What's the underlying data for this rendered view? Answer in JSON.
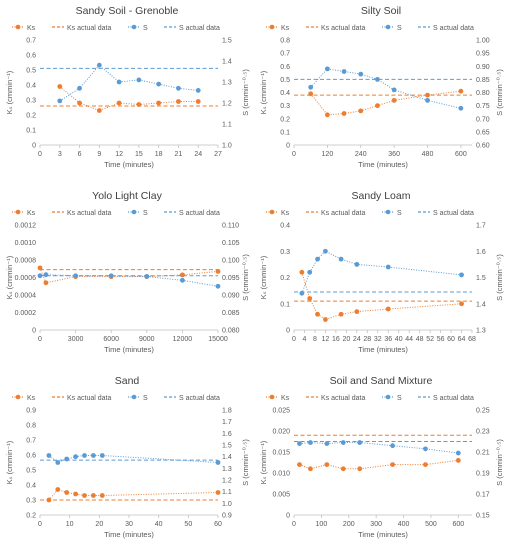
{
  "colors": {
    "ks": "#ED7D31",
    "s": "#5B9BD5",
    "axis": "#bfbfbf",
    "text": "#595959",
    "title": "#404040"
  },
  "legend_labels": [
    "Ks",
    "Ks actual data",
    "S",
    "S actual data"
  ],
  "chart_data": [
    {
      "type": "line",
      "title": "Sandy Soil - Grenoble",
      "xlabel": "Time (minutes)",
      "ylabel": "Kₛ (cmmin⁻¹)",
      "y2label": "S (cmmin⁻⁰·⁵)",
      "xlim": [
        0,
        27
      ],
      "xticks": [
        "0",
        "3",
        "6",
        "9",
        "12",
        "15",
        "18",
        "21",
        "24",
        "27"
      ],
      "ylim": [
        0,
        0.7
      ],
      "yticks": [
        "0",
        "0.1",
        "0.2",
        "0.3",
        "0.4",
        "0.5",
        "0.6",
        "0.7"
      ],
      "y2lim": [
        1.0,
        1.5
      ],
      "y2ticks": [
        "1.0",
        "1.1",
        "1.2",
        "1.3",
        "1.4",
        "1.5"
      ],
      "series": [
        {
          "name": "Ks",
          "axis": "left",
          "x": [
            3,
            6,
            9,
            12,
            15,
            18,
            21,
            24
          ],
          "y": [
            0.39,
            0.28,
            0.23,
            0.28,
            0.27,
            0.28,
            0.29,
            0.29
          ]
        },
        {
          "name": "S",
          "axis": "right",
          "x": [
            3,
            6,
            9,
            12,
            15,
            18,
            21,
            24
          ],
          "y": [
            1.21,
            1.27,
            1.38,
            1.3,
            1.31,
            1.29,
            1.27,
            1.26
          ]
        }
      ],
      "ks_actual": 0.26,
      "s_actual": 1.365
    },
    {
      "type": "line",
      "title": "Silty Soil",
      "xlabel": "Time (minutes)",
      "ylabel": "Kₛ (cmmin⁻¹)",
      "y2label": "S (cmmin⁻⁰·⁵)",
      "xlim": [
        0,
        640
      ],
      "xticks": [
        "0",
        "120",
        "240",
        "360",
        "480",
        "600"
      ],
      "xtickvals": [
        0,
        120,
        240,
        360,
        480,
        600
      ],
      "ylim": [
        0,
        0.8
      ],
      "yticks": [
        "0",
        "0.1",
        "0.2",
        "0.3",
        "0.4",
        "0.5",
        "0.6",
        "0.7",
        "0.8"
      ],
      "y2lim": [
        0.6,
        1.0
      ],
      "y2ticks": [
        "0.60",
        "0.65",
        "0.70",
        "0.75",
        "0.80",
        "0.85",
        "0.90",
        "0.95",
        "1.00"
      ],
      "series": [
        {
          "name": "Ks",
          "axis": "left",
          "x": [
            60,
            120,
            180,
            240,
            300,
            360,
            480,
            600
          ],
          "y": [
            0.39,
            0.23,
            0.24,
            0.26,
            0.3,
            0.34,
            0.38,
            0.41
          ]
        },
        {
          "name": "S",
          "axis": "right",
          "x": [
            60,
            120,
            180,
            240,
            300,
            360,
            480,
            600
          ],
          "y": [
            0.82,
            0.89,
            0.88,
            0.87,
            0.85,
            0.81,
            0.77,
            0.74
          ]
        },
        {
          "name": "Ks actual data",
          "axis": "left",
          "x": [],
          "y": []
        }
      ],
      "ks_actual": 0.38,
      "s_actual": 0.85
    },
    {
      "type": "line",
      "title": "Yolo Light Clay",
      "xlabel": "Time (minutes)",
      "ylabel": "Kₛ (cmmin⁻¹)",
      "y2label": "S (cmmin⁻⁰·⁵)",
      "xlim": [
        0,
        15000
      ],
      "xticks": [
        "0",
        "3000",
        "6000",
        "9000",
        "12000",
        "15000"
      ],
      "ylim": [
        0,
        0.0012
      ],
      "yticks": [
        "0",
        "0.0002",
        "0.0004",
        "0.0006",
        "0.0008",
        "0.0010",
        "0.0012"
      ],
      "y2lim": [
        0.08,
        0.11
      ],
      "y2ticks": [
        "0.080",
        "0.085",
        "0.090",
        "0.095",
        "0.100",
        "0.105",
        "0.110"
      ],
      "series": [
        {
          "name": "Ks",
          "axis": "left",
          "x": [
            0,
            500,
            3000,
            6000,
            9000,
            12000,
            15000
          ],
          "y": [
            0.00071,
            0.00054,
            0.00061,
            0.00061,
            0.00061,
            0.00063,
            0.00067
          ]
        },
        {
          "name": "S",
          "axis": "right",
          "x": [
            0,
            500,
            3000,
            6000,
            9000,
            12000,
            15000
          ],
          "y": [
            0.0955,
            0.0958,
            0.0955,
            0.0955,
            0.0953,
            0.0942,
            0.0925
          ]
        }
      ],
      "ks_actual": 0.00069,
      "s_actual": 0.0955
    },
    {
      "type": "line",
      "title": "Sandy Loam",
      "xlabel": "Time (minutes)",
      "ylabel": "Kₛ (cmmin⁻¹)",
      "y2label": "S (cmmin⁻⁰·⁵)",
      "xlim": [
        0,
        68
      ],
      "xticks": [
        "0",
        "4",
        "8",
        "12",
        "16",
        "20",
        "24",
        "28",
        "32",
        "36",
        "40",
        "44",
        "48",
        "52",
        "56",
        "60",
        "64",
        "68"
      ],
      "ylim": [
        0,
        0.4
      ],
      "yticks": [
        "0",
        "0.1",
        "0.2",
        "0.3",
        "0.4"
      ],
      "y2lim": [
        1.3,
        1.7
      ],
      "y2ticks": [
        "1.3",
        "1.4",
        "1.5",
        "1.6",
        "1.7"
      ],
      "series": [
        {
          "name": "Ks",
          "axis": "left",
          "x": [
            3,
            6,
            9,
            12,
            18,
            24,
            36,
            64
          ],
          "y": [
            0.22,
            0.12,
            0.06,
            0.04,
            0.06,
            0.07,
            0.08,
            0.1
          ]
        },
        {
          "name": "S",
          "axis": "right",
          "x": [
            3,
            6,
            9,
            12,
            18,
            24,
            36,
            64
          ],
          "y": [
            1.44,
            1.52,
            1.57,
            1.6,
            1.57,
            1.55,
            1.54,
            1.51
          ]
        }
      ],
      "ks_actual": 0.11,
      "s_actual": 1.445
    },
    {
      "type": "line",
      "title": "Sand",
      "xlabel": "Time (minutes)",
      "ylabel": "Kₛ (cmmin⁻¹)",
      "y2label": "S (cmmin⁻⁰·⁵)",
      "xlim": [
        0,
        60
      ],
      "xticks": [
        "0",
        "10",
        "20",
        "30",
        "40",
        "50",
        "60"
      ],
      "ylim": [
        0.2,
        0.9
      ],
      "yticks": [
        "0.2",
        "0.3",
        "0.4",
        "0.5",
        "0.6",
        "0.7",
        "0.8",
        "0.9"
      ],
      "y2lim": [
        0.9,
        1.8
      ],
      "y2ticks": [
        "0.9",
        "1.0",
        "1.1",
        "1.2",
        "1.3",
        "1.4",
        "1.5",
        "1.6",
        "1.7",
        "1.8"
      ],
      "series": [
        {
          "name": "Ks",
          "axis": "left",
          "x": [
            3,
            6,
            9,
            12,
            15,
            18,
            21,
            60
          ],
          "y": [
            0.3,
            0.37,
            0.35,
            0.34,
            0.33,
            0.33,
            0.33,
            0.35
          ]
        },
        {
          "name": "S",
          "axis": "right",
          "x": [
            3,
            6,
            9,
            12,
            15,
            18,
            21,
            60
          ],
          "y": [
            1.41,
            1.35,
            1.38,
            1.4,
            1.41,
            1.41,
            1.41,
            1.35
          ]
        }
      ],
      "ks_actual": 0.3,
      "s_actual": 1.37
    },
    {
      "type": "line",
      "title": "Soil and Sand Mixture",
      "xlabel": "Time (minutes)",
      "ylabel": "Kₛ (cmmin⁻¹)",
      "y2label": "S (cmmin⁻⁰·⁵)",
      "xlim": [
        0,
        650
      ],
      "xticks": [
        "0",
        "100",
        "200",
        "300",
        "400",
        "500",
        "600"
      ],
      "xtickvals": [
        0,
        100,
        200,
        300,
        400,
        500,
        600
      ],
      "ylim": [
        0,
        0.025
      ],
      "yticks": [
        "0",
        "0.005",
        "0.010",
        "0.015",
        "0.020",
        "0.025"
      ],
      "y2lim": [
        0.15,
        0.25
      ],
      "y2ticks": [
        "0.15",
        "0.17",
        "0.19",
        "0.21",
        "0.23",
        "0.25"
      ],
      "series": [
        {
          "name": "Ks",
          "axis": "left",
          "x": [
            20,
            60,
            120,
            180,
            240,
            360,
            480,
            600
          ],
          "y": [
            0.012,
            0.011,
            0.012,
            0.011,
            0.011,
            0.012,
            0.012,
            0.013
          ]
        },
        {
          "name": "S",
          "axis": "right",
          "x": [
            20,
            60,
            120,
            180,
            240,
            360,
            480,
            600
          ],
          "y": [
            0.218,
            0.219,
            0.218,
            0.219,
            0.219,
            0.216,
            0.213,
            0.209
          ]
        }
      ],
      "ks_actual": 0.019,
      "s_actual": 0.22
    }
  ]
}
